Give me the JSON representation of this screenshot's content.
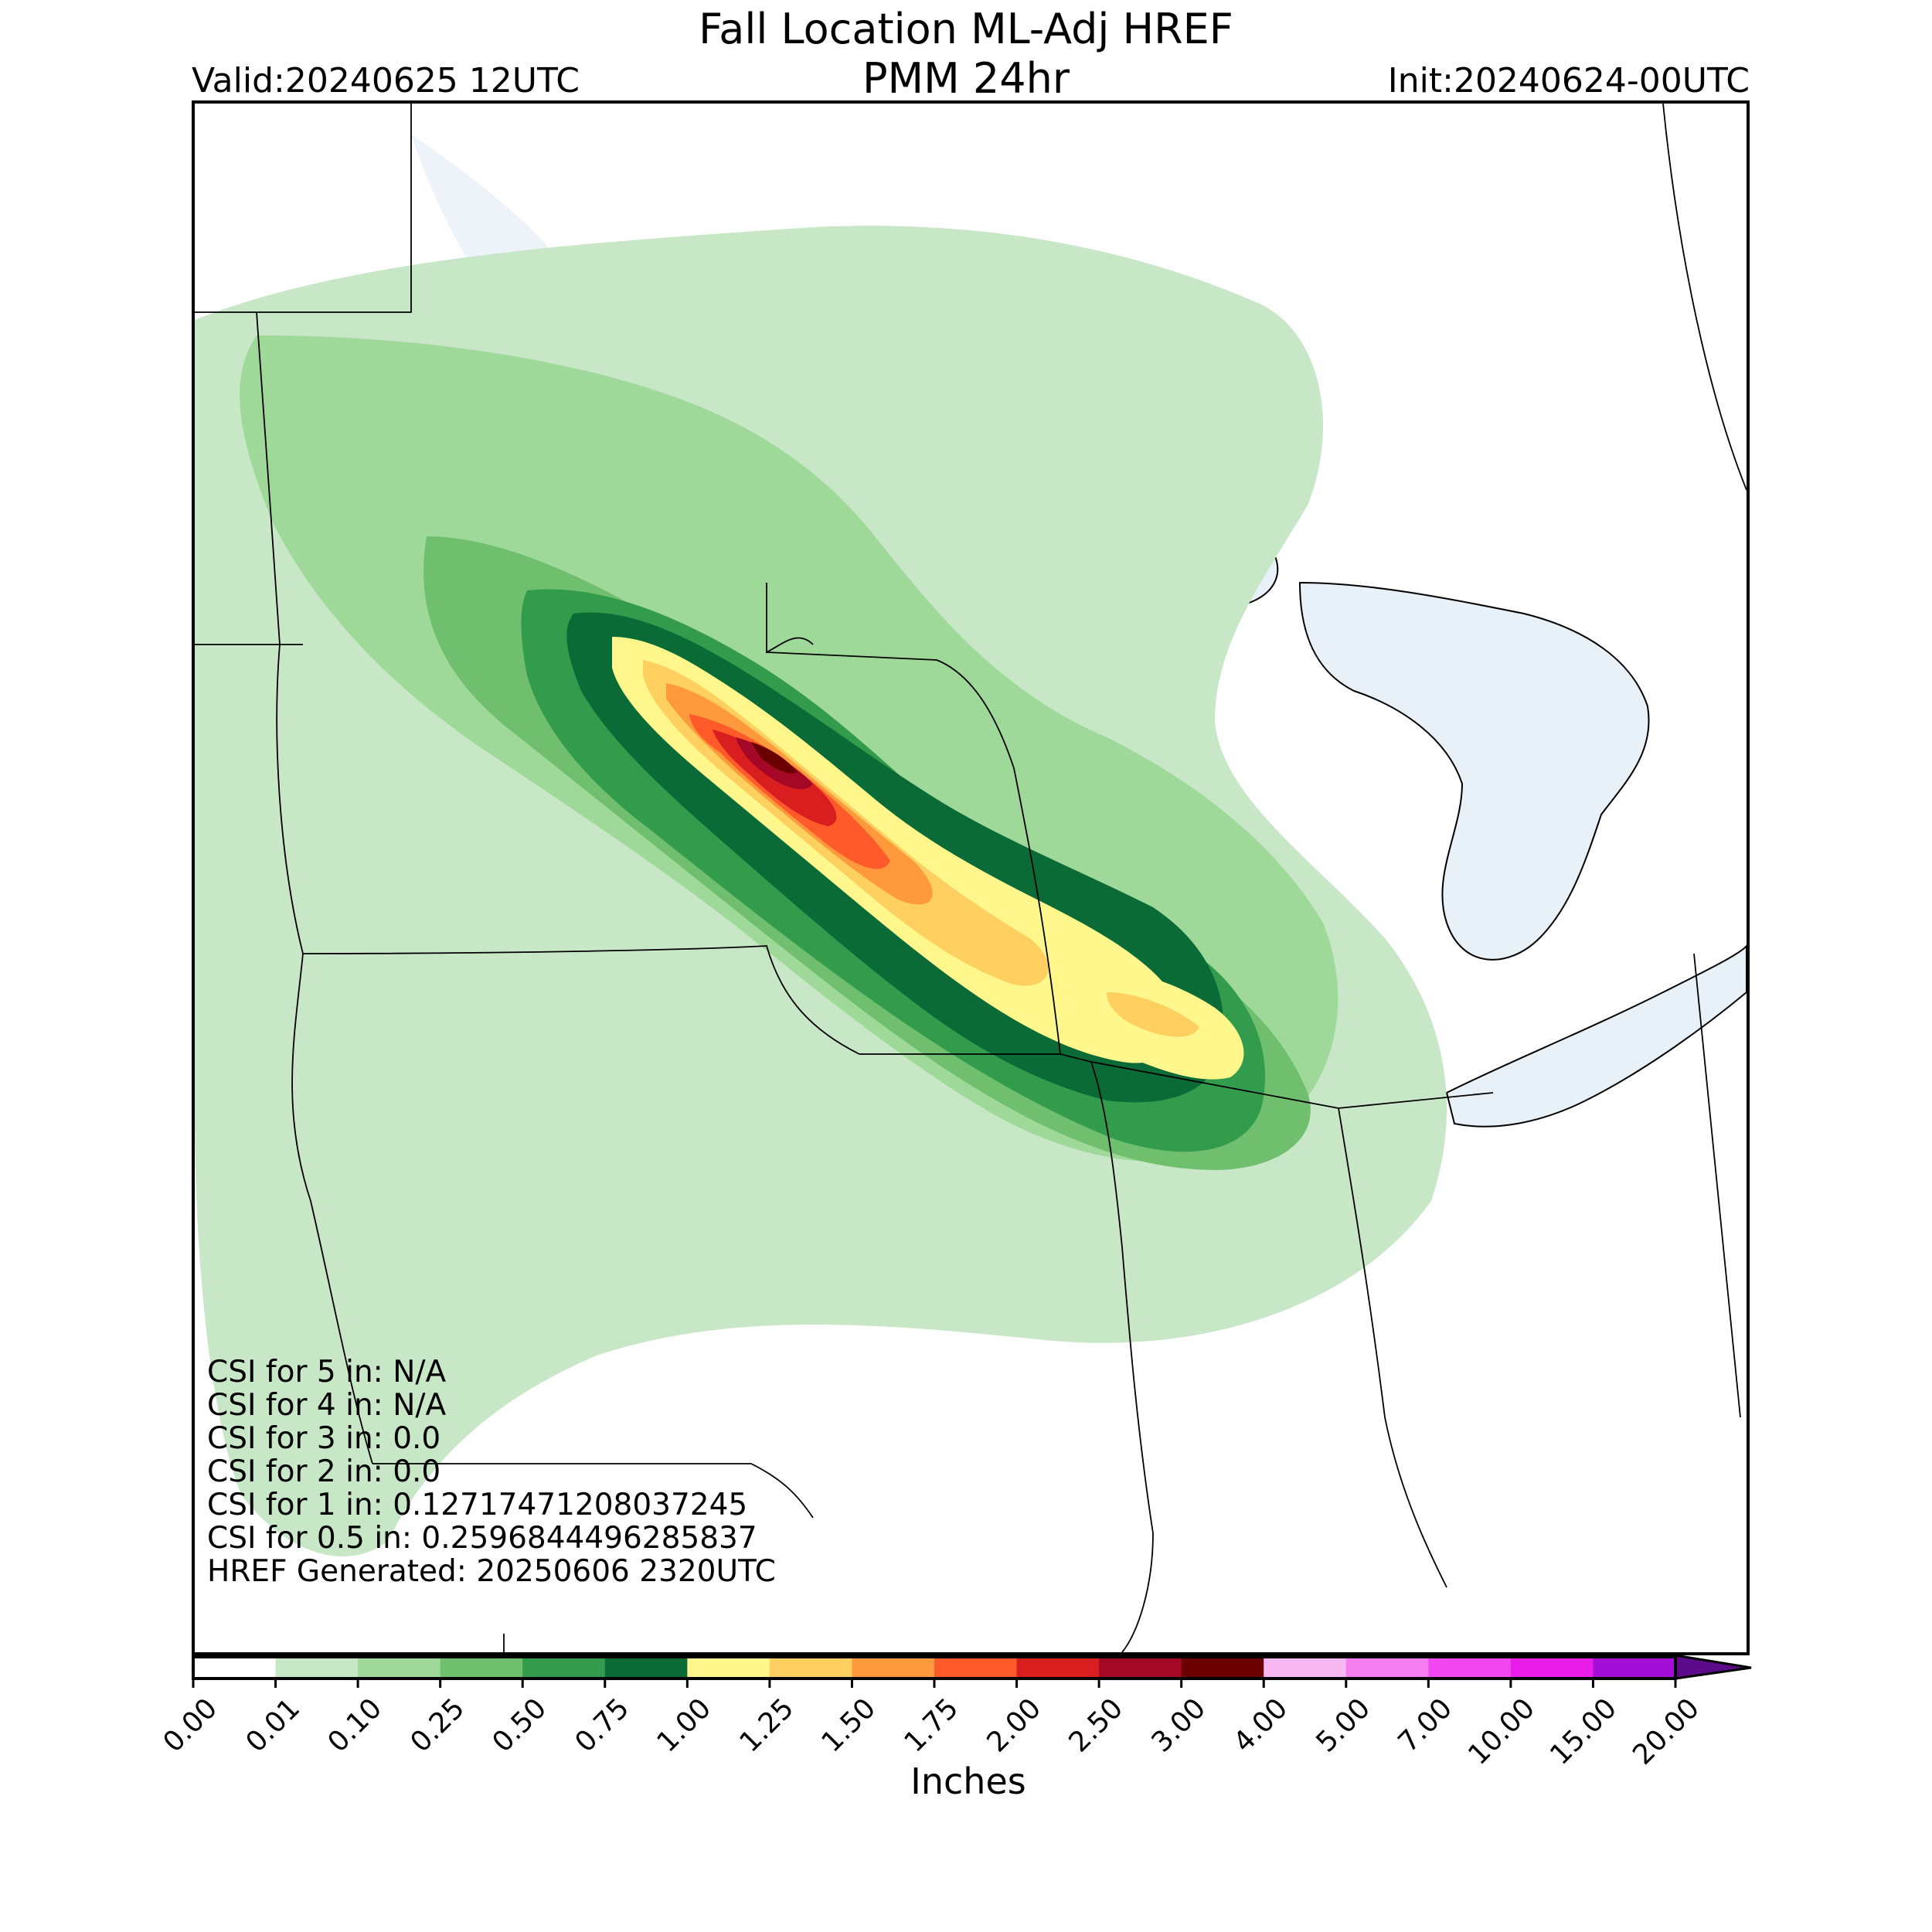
{
  "header": {
    "title_line1": "Fall Location ML-Adj HREF",
    "title_line2": "PMM 24hr",
    "valid": "Valid:20240625 12UTC",
    "init": "Init:20240624-00UTC"
  },
  "stats": [
    "CSI for 5 in: N/A",
    "CSI for 4 in: N/A",
    "CSI for 3 in: 0.0",
    "CSI for 2 in: 0.0",
    "CSI for 1 in: 0.12717471208037245",
    "CSI for 0.5 in: 0.2596844496285837",
    "HREF Generated: 20250606 2320UTC"
  ],
  "colorbar": {
    "label": "Inches",
    "ticks": [
      "0.00",
      "0.01",
      "0.10",
      "0.25",
      "0.50",
      "0.75",
      "1.00",
      "1.25",
      "1.50",
      "1.75",
      "2.00",
      "2.50",
      "3.00",
      "4.00",
      "5.00",
      "7.00",
      "10.00",
      "15.00",
      "20.00"
    ],
    "colors": [
      "#ffffff",
      "#c7e7c7",
      "#9fd99a",
      "#6fbf6f",
      "#339c4c",
      "#0a6b36",
      "#fff78c",
      "#ffcf60",
      "#ff9a3c",
      "#ff5a2a",
      "#d91e20",
      "#a50826",
      "#6b0000",
      "#f7b8f2",
      "#f47ef0",
      "#f048ee",
      "#e81ee8",
      "#a30fd6"
    ],
    "extend_color": "#5d0a8b"
  },
  "map": {
    "region": "Upper Midwest / Great Lakes",
    "field_colors": {
      "light": "#c7e7c7",
      "green": "#9fd99a",
      "mid": "#6fbf6f",
      "dark": "#339c4c",
      "darkest": "#0a6b36",
      "yellow": "#fff78c",
      "orange": "#ffcf60",
      "red_orange": "#ff5a2a",
      "red": "#d91e20",
      "dark_red": "#a50826",
      "maroon": "#6b0000",
      "water": "#e8f0f8"
    }
  }
}
